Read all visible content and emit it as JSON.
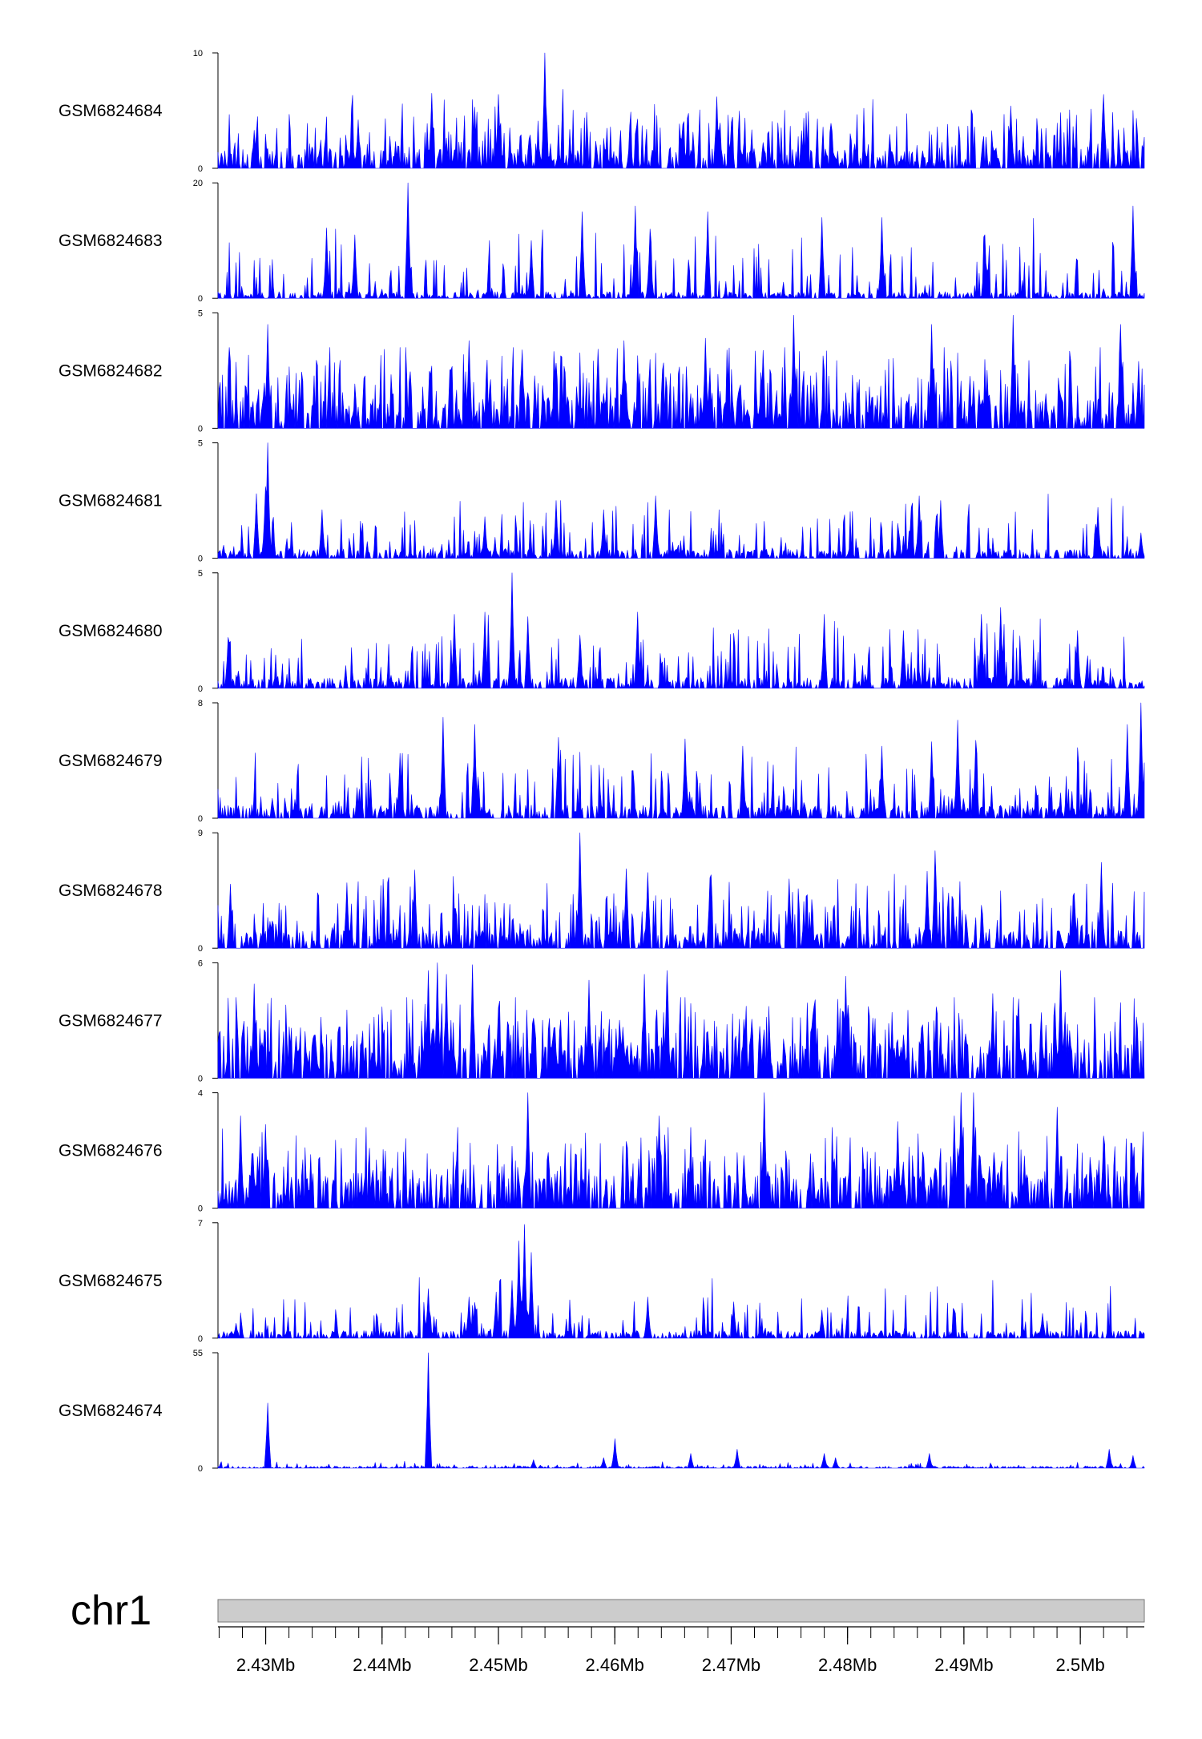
{
  "chart_data": {
    "type": "area",
    "chromosome": "chr1",
    "x_unit": "Mb",
    "xlim": [
      2.4259,
      2.5055
    ],
    "x_ticks": [
      {
        "value": 2.43,
        "label": "2.43Mb"
      },
      {
        "value": 2.44,
        "label": "2.44Mb"
      },
      {
        "value": 2.45,
        "label": "2.45Mb"
      },
      {
        "value": 2.46,
        "label": "2.46Mb"
      },
      {
        "value": 2.47,
        "label": "2.47Mb"
      },
      {
        "value": 2.48,
        "label": "2.48Mb"
      },
      {
        "value": 2.49,
        "label": "2.49Mb"
      },
      {
        "value": 2.5,
        "label": "2.5Mb"
      }
    ],
    "minor_tick_step_mb": 0.002,
    "colors": {
      "signal": "#0000ff",
      "ideogram": "#cccccc",
      "axis": "#000000"
    },
    "tracks": [
      {
        "name": "GSM6824684",
        "ymax": 10,
        "ymin_label": "0",
        "ymax_label": "10",
        "baseline": 1.5,
        "density": 2.6,
        "scale": 0.55,
        "peaks": [
          [
            2.4443,
            6.5
          ],
          [
            2.45,
            6.4
          ],
          [
            2.454,
            10
          ],
          [
            2.448,
            5.3
          ],
          [
            2.4688,
            6.2
          ],
          [
            2.502,
            6.4
          ],
          [
            2.494,
            5.4
          ],
          [
            2.47,
            4.0
          ],
          [
            2.429,
            3.3
          ],
          [
            2.438,
            4.2
          ]
        ]
      },
      {
        "name": "GSM6824683",
        "ymax": 20,
        "ymin_label": "0",
        "ymax_label": "20",
        "baseline": 1.0,
        "density": 2.0,
        "scale": 0.7,
        "peaks": [
          [
            2.4422,
            20
          ],
          [
            2.4377,
            11
          ],
          [
            2.4352,
            12
          ],
          [
            2.4528,
            10
          ],
          [
            2.4572,
            15
          ],
          [
            2.4618,
            16
          ],
          [
            2.463,
            12
          ],
          [
            2.468,
            15
          ],
          [
            2.4778,
            14
          ],
          [
            2.483,
            14
          ],
          [
            2.4918,
            11
          ],
          [
            2.5045,
            16
          ]
        ]
      },
      {
        "name": "GSM6824682",
        "ymax": 5,
        "ymin_label": "0",
        "ymax_label": "5",
        "baseline": 1.1,
        "density": 3.2,
        "scale": 0.6,
        "peaks": [
          [
            2.4302,
            4.5
          ],
          [
            2.452,
            3.4
          ],
          [
            2.4475,
            3.8
          ],
          [
            2.4608,
            3.8
          ],
          [
            2.4678,
            3.9
          ],
          [
            2.4754,
            4.9
          ],
          [
            2.4872,
            4.5
          ],
          [
            2.4942,
            4.9
          ],
          [
            2.5035,
            4.5
          ],
          [
            2.505,
            2.9
          ]
        ]
      },
      {
        "name": "GSM6824681",
        "ymax": 5,
        "ymin_label": "0",
        "ymax_label": "5",
        "baseline": 0.35,
        "density": 1.8,
        "scale": 0.5,
        "peaks": [
          [
            2.4302,
            5.0
          ],
          [
            2.4292,
            2.8
          ],
          [
            2.43,
            3.1
          ],
          [
            2.4348,
            2.1
          ],
          [
            2.4488,
            1.8
          ],
          [
            2.455,
            2.5
          ],
          [
            2.459,
            2.1
          ],
          [
            2.4635,
            2.7
          ],
          [
            2.4862,
            2.7
          ],
          [
            2.488,
            2.5
          ],
          [
            2.4855,
            2.2
          ],
          [
            2.5015,
            2.2
          ],
          [
            2.5052,
            1.1
          ]
        ]
      },
      {
        "name": "GSM6824680",
        "ymax": 5,
        "ymin_label": "0",
        "ymax_label": "5",
        "baseline": 0.4,
        "density": 2.0,
        "scale": 0.6,
        "peaks": [
          [
            2.4512,
            5.0
          ],
          [
            2.4488,
            3.3
          ],
          [
            2.4462,
            3.2
          ],
          [
            2.4525,
            3.1
          ],
          [
            2.457,
            2.3
          ],
          [
            2.462,
            3.3
          ],
          [
            2.478,
            3.2
          ],
          [
            2.4848,
            2.5
          ],
          [
            2.4915,
            3.2
          ],
          [
            2.4932,
            3.5
          ],
          [
            2.4998,
            2.5
          ],
          [
            2.4268,
            2.2
          ]
        ]
      },
      {
        "name": "GSM6824679",
        "ymax": 8,
        "ymin_label": "0",
        "ymax_label": "8",
        "baseline": 0.8,
        "density": 2.0,
        "scale": 0.55,
        "peaks": [
          [
            2.4452,
            7.0
          ],
          [
            2.448,
            6.5
          ],
          [
            2.4552,
            5.6
          ],
          [
            2.483,
            5.0
          ],
          [
            2.4895,
            6.8
          ],
          [
            2.4872,
            5.3
          ],
          [
            2.491,
            5.4
          ],
          [
            2.504,
            6.5
          ],
          [
            2.5052,
            8.0
          ],
          [
            2.466,
            5.5
          ],
          [
            2.4415,
            4.5
          ],
          [
            2.471,
            5.0
          ]
        ]
      },
      {
        "name": "GSM6824678",
        "ymax": 9,
        "ymin_label": "0",
        "ymax_label": "9",
        "baseline": 1.2,
        "density": 2.6,
        "scale": 0.55,
        "peaks": [
          [
            2.457,
            9.0
          ],
          [
            2.4875,
            7.6
          ],
          [
            2.4868,
            6.0
          ],
          [
            2.5018,
            6.7
          ],
          [
            2.4628,
            5.9
          ],
          [
            2.437,
            5.1
          ],
          [
            2.4428,
            6.1
          ],
          [
            2.475,
            5.4
          ],
          [
            2.461,
            6.2
          ],
          [
            2.4682,
            5.5
          ],
          [
            2.427,
            5.0
          ]
        ]
      },
      {
        "name": "GSM6824677",
        "ymax": 6,
        "ymin_label": "0",
        "ymax_label": "6",
        "baseline": 1.5,
        "density": 3.4,
        "scale": 0.55,
        "peaks": [
          [
            2.444,
            5.6
          ],
          [
            2.4448,
            6.0
          ],
          [
            2.4455,
            5.4
          ],
          [
            2.4478,
            5.9
          ],
          [
            2.429,
            4.9
          ],
          [
            2.4645,
            5.6
          ],
          [
            2.4625,
            5.4
          ],
          [
            2.4798,
            5.3
          ],
          [
            2.4983,
            5.6
          ],
          [
            2.4925,
            4.4
          ],
          [
            2.4578,
            5.1
          ]
        ]
      },
      {
        "name": "GSM6824676",
        "ymax": 4,
        "ymin_label": "0",
        "ymax_label": "4",
        "baseline": 1.0,
        "density": 2.6,
        "scale": 0.55,
        "peaks": [
          [
            2.4525,
            4.0
          ],
          [
            2.4728,
            4.0
          ],
          [
            2.4898,
            4.0
          ],
          [
            2.4908,
            4.0
          ],
          [
            2.4892,
            3.2
          ],
          [
            2.4638,
            3.2
          ],
          [
            2.43,
            2.9
          ],
          [
            2.4278,
            3.2
          ],
          [
            2.498,
            3.5
          ],
          [
            2.4843,
            3.0
          ],
          [
            2.502,
            2.5
          ]
        ]
      },
      {
        "name": "GSM6824675",
        "ymax": 7,
        "ymin_label": "0",
        "ymax_label": "7",
        "baseline": 0.4,
        "density": 1.6,
        "scale": 0.5,
        "peaks": [
          [
            2.4522,
            6.9
          ],
          [
            2.4518,
            5.9
          ],
          [
            2.4528,
            5.2
          ],
          [
            2.4512,
            3.5
          ],
          [
            2.4498,
            2.8
          ],
          [
            2.444,
            3.0
          ],
          [
            2.4475,
            2.5
          ],
          [
            2.4628,
            2.5
          ],
          [
            2.4702,
            2.2
          ],
          [
            2.4778,
            1.7
          ],
          [
            2.4968,
            1.5
          ],
          [
            2.4275,
            0.9
          ]
        ]
      },
      {
        "name": "GSM6824674",
        "ymax": 55,
        "ymin_label": "0",
        "ymax_label": "55",
        "baseline": 0.8,
        "density": 0.8,
        "scale": 0.05,
        "peaks": [
          [
            2.4302,
            31
          ],
          [
            2.444,
            55
          ],
          [
            2.46,
            14
          ],
          [
            2.4705,
            9
          ],
          [
            2.478,
            7
          ],
          [
            2.487,
            7
          ],
          [
            2.5025,
            9
          ],
          [
            2.479,
            5
          ],
          [
            2.453,
            4
          ],
          [
            2.459,
            5
          ],
          [
            2.4665,
            7
          ],
          [
            2.5045,
            6
          ]
        ]
      }
    ]
  }
}
